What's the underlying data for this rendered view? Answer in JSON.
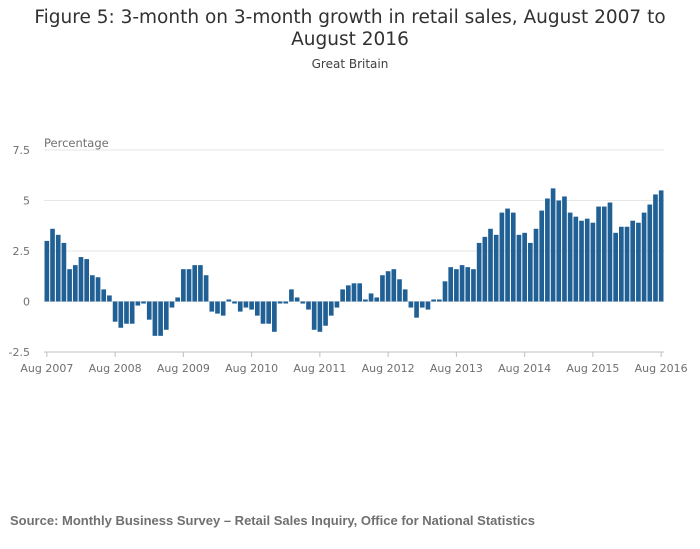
{
  "header": {
    "title": "Figure 5: 3-month on 3-month growth in retail sales, August 2007 to August 2016",
    "subtitle": "Great Britain"
  },
  "footer": {
    "source": "Source: Monthly Business Survey – Retail Sales Inquiry, Office for National Statistics"
  },
  "colors": {
    "bar": "#206095",
    "grid": "#e6e6e6",
    "axis": "#bfbfbf",
    "text": "#707071"
  },
  "chart_data": {
    "type": "bar",
    "title": "Figure 5: 3-month on 3-month growth in retail sales, August 2007 to August 2016",
    "subtitle": "Great Britain",
    "ylabel": "Percentage",
    "xlabel": "",
    "ylim": [
      -2.5,
      7.5
    ],
    "yticks": [
      -2.5,
      0,
      2.5,
      5,
      7.5
    ],
    "ytick_labels": [
      "-2.5",
      "0",
      "2.5",
      "5",
      "7.5"
    ],
    "grid": true,
    "xtick_labels": [
      "Aug 2007",
      "Aug 2008",
      "Aug 2009",
      "Aug 2010",
      "Aug 2011",
      "Aug 2012",
      "Aug 2013",
      "Aug 2014",
      "Aug 2015",
      "Aug 2016"
    ],
    "categories": [
      "Aug 2007",
      "Sep 2007",
      "Oct 2007",
      "Nov 2007",
      "Dec 2007",
      "Jan 2008",
      "Feb 2008",
      "Mar 2008",
      "Apr 2008",
      "May 2008",
      "Jun 2008",
      "Jul 2008",
      "Aug 2008",
      "Sep 2008",
      "Oct 2008",
      "Nov 2008",
      "Dec 2008",
      "Jan 2009",
      "Feb 2009",
      "Mar 2009",
      "Apr 2009",
      "May 2009",
      "Jun 2009",
      "Jul 2009",
      "Aug 2009",
      "Sep 2009",
      "Oct 2009",
      "Nov 2009",
      "Dec 2009",
      "Jan 2010",
      "Feb 2010",
      "Mar 2010",
      "Apr 2010",
      "May 2010",
      "Jun 2010",
      "Jul 2010",
      "Aug 2010",
      "Sep 2010",
      "Oct 2010",
      "Nov 2010",
      "Dec 2010",
      "Jan 2011",
      "Feb 2011",
      "Mar 2011",
      "Apr 2011",
      "May 2011",
      "Jun 2011",
      "Jul 2011",
      "Aug 2011",
      "Sep 2011",
      "Oct 2011",
      "Nov 2011",
      "Dec 2011",
      "Jan 2012",
      "Feb 2012",
      "Mar 2012",
      "Apr 2012",
      "May 2012",
      "Jun 2012",
      "Jul 2012",
      "Aug 2012",
      "Sep 2012",
      "Oct 2012",
      "Nov 2012",
      "Dec 2012",
      "Jan 2013",
      "Feb 2013",
      "Mar 2013",
      "Apr 2013",
      "May 2013",
      "Jun 2013",
      "Jul 2013",
      "Aug 2013",
      "Sep 2013",
      "Oct 2013",
      "Nov 2013",
      "Dec 2013",
      "Jan 2014",
      "Feb 2014",
      "Mar 2014",
      "Apr 2014",
      "May 2014",
      "Jun 2014",
      "Jul 2014",
      "Aug 2014",
      "Sep 2014",
      "Oct 2014",
      "Nov 2014",
      "Dec 2014",
      "Jan 2015",
      "Feb 2015",
      "Mar 2015",
      "Apr 2015",
      "May 2015",
      "Jun 2015",
      "Jul 2015",
      "Aug 2015",
      "Sep 2015",
      "Oct 2015",
      "Nov 2015",
      "Dec 2015",
      "Jan 2016",
      "Feb 2016",
      "Mar 2016",
      "Apr 2016",
      "May 2016",
      "Jun 2016",
      "Jul 2016",
      "Aug 2016"
    ],
    "values": [
      3.0,
      3.6,
      3.3,
      2.9,
      1.6,
      1.8,
      2.2,
      2.1,
      1.3,
      1.2,
      0.6,
      0.3,
      -1.0,
      -1.3,
      -1.1,
      -1.1,
      -0.2,
      -0.1,
      -0.9,
      -1.7,
      -1.7,
      -1.4,
      -0.3,
      0.2,
      1.6,
      1.6,
      1.8,
      1.8,
      1.3,
      -0.5,
      -0.6,
      -0.7,
      0.1,
      -0.1,
      -0.5,
      -0.3,
      -0.4,
      -0.7,
      -1.1,
      -1.1,
      -1.5,
      -0.1,
      -0.1,
      0.6,
      0.2,
      -0.1,
      -0.4,
      -1.4,
      -1.5,
      -1.2,
      -0.7,
      -0.3,
      0.6,
      0.8,
      0.9,
      0.9,
      0.1,
      0.4,
      0.2,
      1.3,
      1.5,
      1.6,
      1.1,
      0.6,
      -0.3,
      -0.8,
      -0.3,
      -0.4,
      0.1,
      0.1,
      1.0,
      1.7,
      1.6,
      1.8,
      1.7,
      1.6,
      2.9,
      3.2,
      3.6,
      3.3,
      4.4,
      4.6,
      4.4,
      3.3,
      3.4,
      2.9,
      3.6,
      4.5,
      5.1,
      5.6,
      5.0,
      5.2,
      4.4,
      4.2,
      4.0,
      4.1,
      3.9,
      4.7,
      4.7,
      4.9,
      3.4,
      3.7,
      3.7,
      4.0,
      3.9,
      4.4,
      4.8,
      5.3,
      5.5
    ]
  }
}
